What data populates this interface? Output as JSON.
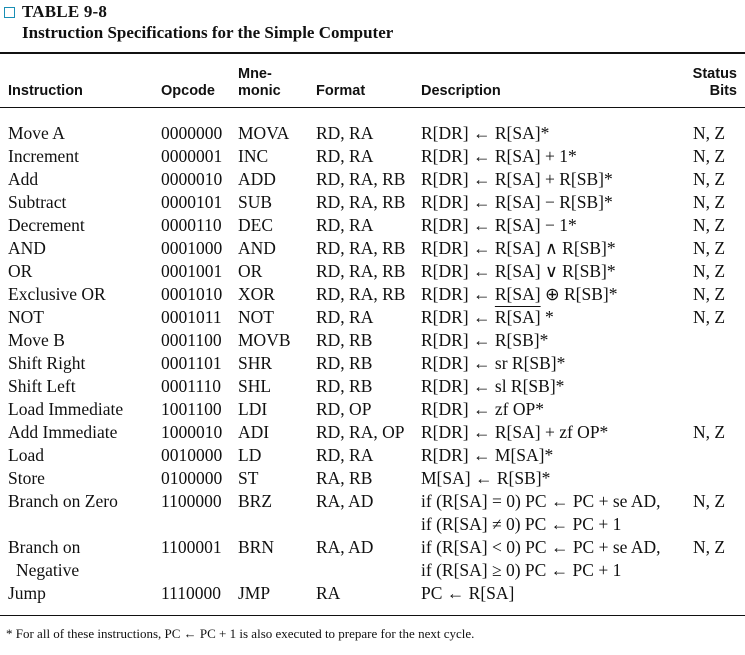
{
  "caption": {
    "label": "TABLE 9-8",
    "title": "Instruction Specifications for the Simple Computer"
  },
  "headers": {
    "instruction": "Instruction",
    "opcode": "Opcode",
    "mnemonic_1": "Mne-",
    "mnemonic_2": "monic",
    "format": "Format",
    "description": "Description",
    "status_1": "Status",
    "status_2": "Bits"
  },
  "rows": [
    {
      "instr": "Move A",
      "opcode": "0000000",
      "mn": "MOVA",
      "format": "RD, RA",
      "desc": "R[DR] ← R[SA]*",
      "status": "N, Z"
    },
    {
      "instr": "Increment",
      "opcode": "0000001",
      "mn": "INC",
      "format": "RD, RA",
      "desc": "R[DR] ← R[SA] + 1*",
      "status": "N, Z"
    },
    {
      "instr": "Add",
      "opcode": "0000010",
      "mn": "ADD",
      "format": "RD, RA, RB",
      "desc": "R[DR] ← R[SA] + R[SB]*",
      "status": "N, Z"
    },
    {
      "instr": "Subtract",
      "opcode": "0000101",
      "mn": "SUB",
      "format": "RD, RA, RB",
      "desc": "R[DR] ← R[SA] − R[SB]*",
      "status": "N, Z"
    },
    {
      "instr": "Decrement",
      "opcode": "0000110",
      "mn": "DEC",
      "format": "RD, RA",
      "desc": "R[DR] ← R[SA] − 1*",
      "status": "N, Z"
    },
    {
      "instr": "AND",
      "opcode": "0001000",
      "mn": "AND",
      "format": "RD, RA, RB",
      "desc": "R[DR] ← R[SA] ∧ R[SB]*",
      "status": "N, Z"
    },
    {
      "instr": "OR",
      "opcode": "0001001",
      "mn": "OR",
      "format": "RD, RA, RB",
      "desc": "R[DR] ← R[SA] ∨ R[SB]*",
      "status": "N, Z"
    },
    {
      "instr": "Exclusive OR",
      "opcode": "0001010",
      "mn": "XOR",
      "format": "RD, RA, RB",
      "desc": "R[DR] ← R[SA] ⊕ R[SB]*",
      "status": "N, Z"
    },
    {
      "instr": "NOT",
      "opcode": "0001011",
      "mn": "NOT",
      "format": "RD, RA",
      "desc_pre": "R[DR] ← ",
      "desc_over": "R[SA]",
      "desc_post": " *",
      "status": "N, Z"
    },
    {
      "instr": "Move B",
      "opcode": "0001100",
      "mn": "MOVB",
      "format": "RD, RB",
      "desc": "R[DR] ← R[SB]*",
      "status": ""
    },
    {
      "instr": "Shift Right",
      "opcode": "0001101",
      "mn": "SHR",
      "format": "RD, RB",
      "desc": "R[DR] ← sr R[SB]*",
      "status": ""
    },
    {
      "instr": "Shift Left",
      "opcode": "0001110",
      "mn": "SHL",
      "format": "RD, RB",
      "desc": "R[DR] ← sl R[SB]*",
      "status": ""
    },
    {
      "instr": "Load Immediate",
      "opcode": "1001100",
      "mn": "LDI",
      "format": "RD, OP",
      "desc": "R[DR] ← zf OP*",
      "status": ""
    },
    {
      "instr": "Add Immediate",
      "opcode": "1000010",
      "mn": "ADI",
      "format": "RD, RA, OP",
      "desc": "R[DR] ← R[SA] + zf OP*",
      "status": "N, Z"
    },
    {
      "instr": "Load",
      "opcode": "0010000",
      "mn": "LD",
      "format": "RD, RA",
      "desc": "R[DR] ← M[SA]*",
      "status": ""
    },
    {
      "instr": "Store",
      "opcode": "0100000",
      "mn": "ST",
      "format": "RA, RB",
      "desc": "M[SA] ← R[SB]*",
      "status": ""
    },
    {
      "instr": "Branch on Zero",
      "opcode": "1100000",
      "mn": "BRZ",
      "format": "RA, AD",
      "desc": "if (R[SA] = 0) PC ← PC + se AD,",
      "desc2": "if (R[SA] ≠ 0) PC ← PC + 1",
      "status": "N, Z"
    },
    {
      "instr": "Branch on",
      "instr2": "Negative",
      "opcode": "1100001",
      "mn": "BRN",
      "format": "RA, AD",
      "desc": "if (R[SA] < 0) PC ← PC + se AD,",
      "desc2": "if (R[SA] ≥ 0) PC ← PC + 1",
      "status": "N, Z"
    },
    {
      "instr": "Jump",
      "opcode": "1110000",
      "mn": "JMP",
      "format": "RA",
      "desc": "PC ← R[SA]",
      "status": ""
    }
  ],
  "footnote": "* For all of these instructions, PC ← PC + 1 is also executed to prepare for the next cycle."
}
